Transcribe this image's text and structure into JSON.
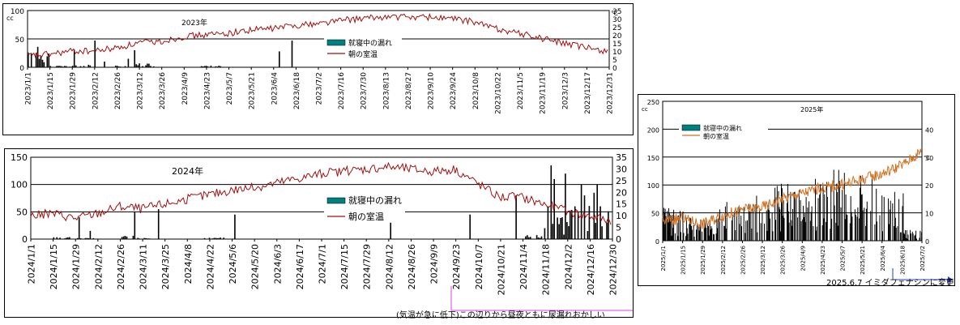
{
  "chart_data": [
    {
      "type": "bar+line",
      "title": "2023年",
      "y_left_unit": "cc",
      "y_right_unit": "℃",
      "ylim_left": [
        0,
        100
      ],
      "yticks_left": [
        0,
        50,
        100
      ],
      "ylim_right": [
        0,
        35
      ],
      "yticks_right": [
        0,
        5,
        10,
        15,
        20,
        25,
        30,
        35
      ],
      "grid": "horizontal",
      "legend_position": "right-middle",
      "x_tick_labels": [
        "2023/1/1",
        "2023/1/15",
        "2023/1/29",
        "2023/2/12",
        "2023/2/26",
        "2023/3/12",
        "2023/3/26",
        "2023/4/9",
        "2023/4/23",
        "2023/5/7",
        "2023/5/21",
        "2023/6/4",
        "2023/6/18",
        "2023/7/2",
        "2023/7/16",
        "2023/7/30",
        "2023/8/13",
        "2023/8/27",
        "2023/9/10",
        "2023/9/24",
        "2023/10/8",
        "2023/10/22",
        "2023/11/5",
        "2023/11/19",
        "2023/12/3",
        "2023/12/17",
        "2023/12/31"
      ],
      "series": [
        {
          "name": "就寝中の漏れ",
          "kind": "bar",
          "axis": "left",
          "color": "#008080",
          "values": [
            25,
            2,
            3,
            0,
            2,
            5,
            0,
            0,
            2,
            0,
            0,
            0,
            0,
            0,
            0,
            0,
            0,
            0,
            0,
            0,
            0,
            0,
            0,
            0,
            0,
            0,
            0
          ],
          "peaks": [
            [
              2,
              25
            ],
            [
              29,
              31
            ],
            [
              42,
              47
            ],
            [
              48,
              10
            ],
            [
              63,
              15
            ],
            [
              67,
              30
            ],
            [
              158,
              28
            ],
            [
              166,
              47
            ]
          ]
        },
        {
          "name": "朝の室温",
          "kind": "line",
          "axis": "right",
          "color": "#a01010",
          "values": [
            7,
            8,
            10,
            10,
            12,
            15,
            16,
            19,
            20,
            21,
            23,
            24,
            26,
            27,
            29,
            30,
            31,
            31,
            31,
            30,
            28,
            24,
            21,
            18,
            15,
            12,
            10
          ]
        }
      ]
    },
    {
      "type": "bar+line",
      "title": "2024年",
      "ylim_left": [
        0,
        150
      ],
      "yticks_left": [
        0,
        50,
        100,
        150
      ],
      "ylim_right": [
        0,
        35
      ],
      "yticks_right": [
        0,
        5,
        10,
        15,
        20,
        25,
        30,
        35
      ],
      "grid": "horizontal",
      "legend_position": "right-middle",
      "x_tick_labels": [
        "2024/1/1",
        "2024/1/15",
        "2024/1/29",
        "2024/2/12",
        "2024/2/26",
        "2024/3/11",
        "2024/3/25",
        "2024/4/8",
        "2024/4/22",
        "2024/5/6",
        "2024/5/20",
        "2024/6/3",
        "2024/6/17",
        "2024/7/1",
        "2024/7/15",
        "2024/7/29",
        "2024/8/12",
        "2024/8/26",
        "2024/9/9",
        "2024/9/23",
        "2024/10/7",
        "2024/10/21",
        "2024/11/4",
        "2024/11/18",
        "2024/12/2",
        "2024/12/16",
        "2024/12/30"
      ],
      "series": [
        {
          "name": "就寝中の漏れ",
          "kind": "bar",
          "axis": "left",
          "color": "#008080",
          "values": [
            0,
            3,
            2,
            0,
            5,
            2,
            0,
            0,
            2,
            0,
            0,
            0,
            0,
            0,
            0,
            0,
            0,
            0,
            0,
            0,
            0,
            0,
            0,
            5,
            35,
            45,
            40
          ],
          "peaks": [
            [
              30,
              40
            ],
            [
              37,
              15
            ],
            [
              65,
              50
            ],
            [
              80,
              55
            ],
            [
              128,
              45
            ],
            [
              226,
              30
            ],
            [
              276,
              45
            ],
            [
              305,
              80
            ],
            [
              311,
              5
            ],
            [
              323,
              20
            ],
            [
              325,
              60
            ],
            [
              327,
              135
            ],
            [
              329,
              110
            ],
            [
              334,
              40
            ],
            [
              336,
              120
            ],
            [
              342,
              60
            ],
            [
              346,
              100
            ],
            [
              348,
              80
            ],
            [
              354,
              85
            ],
            [
              356,
              100
            ],
            [
              358,
              60
            ],
            [
              362,
              30
            ]
          ]
        },
        {
          "name": "朝の室温",
          "kind": "line",
          "axis": "right",
          "color": "#a01010",
          "values": [
            10,
            11,
            9,
            11,
            14,
            13,
            15,
            17,
            19,
            21,
            22,
            24,
            26,
            28,
            29,
            30,
            31,
            30,
            29,
            30,
            24,
            18,
            18,
            15,
            12,
            10,
            8
          ]
        }
      ]
    },
    {
      "type": "bar+line",
      "title": "2025年",
      "y_left_unit": "cc",
      "y_right_unit": "℃",
      "ylim_left": [
        0,
        250
      ],
      "yticks_left": [
        0,
        50,
        100,
        150,
        200,
        250
      ],
      "ylim_right": [
        0,
        50
      ],
      "yticks_right": [
        0,
        10,
        20,
        30,
        40
      ],
      "grid": "horizontal",
      "legend_position": "top-left",
      "x_tick_labels": [
        "2025/1/1",
        "2025/1/15",
        "2025/1/29",
        "2025/2/12",
        "2025/2/26",
        "2025/3/12",
        "2025/3/26",
        "2025/4/9",
        "2025/4/23",
        "2025/5/7",
        "2025/5/21",
        "2025/6/4",
        "2025/6/18",
        "2025/7/2"
      ],
      "series": [
        {
          "name": "就寝中の漏れ",
          "kind": "bar",
          "axis": "left",
          "color": "#008080",
          "values": [
            40,
            35,
            30,
            50,
            45,
            60,
            70,
            65,
            75,
            90,
            80,
            85,
            60,
            15
          ]
        },
        {
          "name": "朝の室温",
          "kind": "line",
          "axis": "right",
          "color": "#d07020",
          "values": [
            7,
            8,
            6,
            9,
            11,
            12,
            15,
            17,
            19,
            20,
            22,
            24,
            27,
            32
          ]
        }
      ]
    }
  ],
  "annotations": {
    "note_2024": "(気温が急に低下)この辺りから昼夜ともに尿漏れおかしい",
    "note_2025": "2025.6.7 イミダフェナシンに変更"
  }
}
